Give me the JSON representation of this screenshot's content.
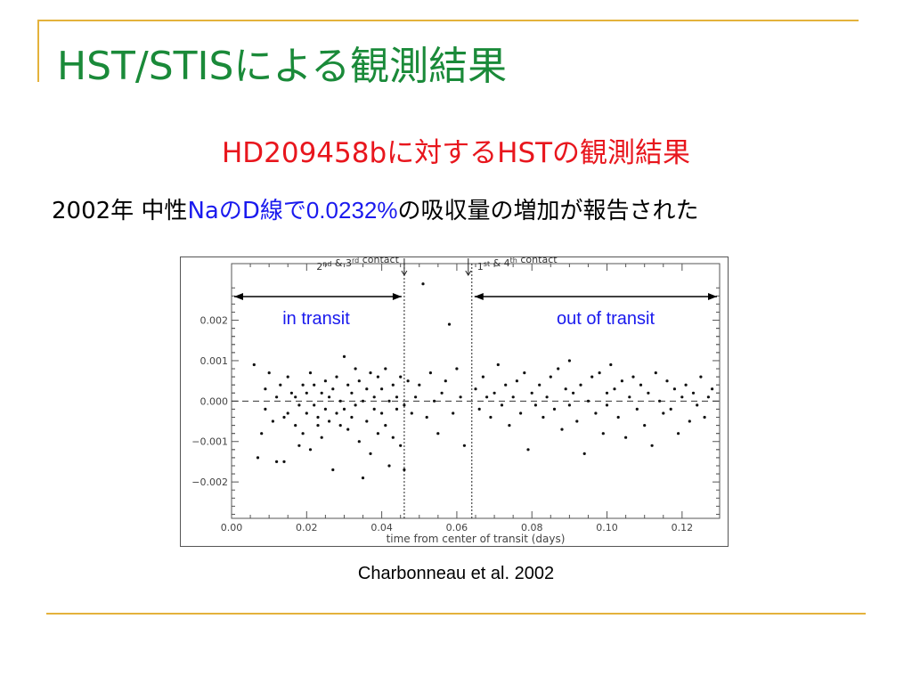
{
  "slide": {
    "title": "HST/STISによる観測結果",
    "subtitle": "HD209458bに対するHSTの観測結果",
    "desc_year": "2002年 中性",
    "desc_blue": "NaのD線で",
    "desc_value": "0.0232%",
    "desc_rest": "の吸収量の増加が報告された",
    "citation": "Charbonneau et al.  2002",
    "accent_color": "#e4b23c",
    "title_color": "#1a8a39",
    "subtitle_color": "#e8161d",
    "highlight_color": "#1a1aee"
  },
  "chart_data": {
    "type": "scatter",
    "title": "",
    "xlabel": "time from center of transit (days)",
    "ylabel": "",
    "xlim": [
      0.0,
      0.13
    ],
    "ylim": [
      -0.0029,
      0.0034
    ],
    "x_ticks": [
      "0.00",
      "0.02",
      "0.04",
      "0.06",
      "0.08",
      "0.10",
      "0.12"
    ],
    "y_ticks": [
      "0.002",
      "0.001",
      "0.000",
      "−0.001",
      "−0.002"
    ],
    "baseline_y": 0.0,
    "contact_lines": [
      {
        "x": 0.046,
        "label_main": "2",
        "label_sup": "nd",
        "label_mid": " & 3",
        "label_sup2": "rd",
        "label_end": " contact"
      },
      {
        "x": 0.064,
        "label_main": "1",
        "label_sup": "st",
        "label_mid": " & 4",
        "label_sup2": "th",
        "label_end": " contact"
      }
    ],
    "regions": [
      {
        "label": "in transit",
        "x_range": [
          0.0,
          0.046
        ],
        "y": 0.0025
      },
      {
        "label": "out of transit",
        "x_range": [
          0.064,
          0.13
        ],
        "y": 0.0025
      }
    ],
    "series": [
      {
        "values": [
          [
            0.006,
            0.0009
          ],
          [
            0.007,
            -0.0014
          ],
          [
            0.008,
            -0.0008
          ],
          [
            0.009,
            0.0003
          ],
          [
            0.009,
            -0.0002
          ],
          [
            0.01,
            0.0007
          ],
          [
            0.011,
            -0.0005
          ],
          [
            0.012,
            0.0001
          ],
          [
            0.012,
            -0.0015
          ],
          [
            0.013,
            0.0004
          ],
          [
            0.014,
            -0.0004
          ],
          [
            0.014,
            -0.0015
          ],
          [
            0.015,
            0.0006
          ],
          [
            0.015,
            -0.0003
          ],
          [
            0.016,
            0.0002
          ],
          [
            0.017,
            -0.0006
          ],
          [
            0.017,
            0.0001
          ],
          [
            0.018,
            -0.0001
          ],
          [
            0.018,
            -0.0011
          ],
          [
            0.019,
            0.0004
          ],
          [
            0.019,
            -0.0008
          ],
          [
            0.02,
            0.0002
          ],
          [
            0.02,
            -0.0003
          ],
          [
            0.021,
            0.0007
          ],
          [
            0.021,
            -0.0012
          ],
          [
            0.022,
            -0.0001
          ],
          [
            0.022,
            0.0004
          ],
          [
            0.023,
            -0.0004
          ],
          [
            0.023,
            -0.0006
          ],
          [
            0.024,
            0.0002
          ],
          [
            0.024,
            -0.0009
          ],
          [
            0.025,
            0.0005
          ],
          [
            0.025,
            -0.0002
          ],
          [
            0.026,
            -0.0005
          ],
          [
            0.026,
            0.0001
          ],
          [
            0.027,
            0.0003
          ],
          [
            0.027,
            -0.0017
          ],
          [
            0.028,
            -0.0003
          ],
          [
            0.028,
            0.0006
          ],
          [
            0.029,
            0.0
          ],
          [
            0.029,
            -0.0006
          ],
          [
            0.03,
            0.0011
          ],
          [
            0.03,
            -0.0002
          ],
          [
            0.031,
            0.0004
          ],
          [
            0.031,
            -0.0007
          ],
          [
            0.032,
            0.0002
          ],
          [
            0.032,
            -0.0004
          ],
          [
            0.033,
            0.0008
          ],
          [
            0.033,
            -0.0001
          ],
          [
            0.034,
            -0.001
          ],
          [
            0.034,
            0.0005
          ],
          [
            0.035,
            0.0
          ],
          [
            0.035,
            -0.0019
          ],
          [
            0.036,
            0.0003
          ],
          [
            0.036,
            -0.0005
          ],
          [
            0.037,
            0.0007
          ],
          [
            0.037,
            -0.0013
          ],
          [
            0.038,
            -0.0002
          ],
          [
            0.038,
            0.0001
          ],
          [
            0.039,
            0.0006
          ],
          [
            0.039,
            -0.0008
          ],
          [
            0.04,
            0.0003
          ],
          [
            0.04,
            -0.0003
          ],
          [
            0.041,
            0.0008
          ],
          [
            0.041,
            -0.0006
          ],
          [
            0.042,
            0.0
          ],
          [
            0.042,
            -0.0016
          ],
          [
            0.043,
            0.0004
          ],
          [
            0.043,
            -0.0009
          ],
          [
            0.044,
            0.0001
          ],
          [
            0.044,
            -0.0002
          ],
          [
            0.045,
            0.0006
          ],
          [
            0.045,
            -0.0011
          ],
          [
            0.046,
            -0.0001
          ],
          [
            0.046,
            -0.0017
          ],
          [
            0.047,
            0.0005
          ],
          [
            0.048,
            -0.0003
          ],
          [
            0.049,
            0.0001
          ],
          [
            0.05,
            0.0004
          ],
          [
            0.051,
            0.0029
          ],
          [
            0.052,
            -0.0004
          ],
          [
            0.053,
            0.0007
          ],
          [
            0.054,
            0.0
          ],
          [
            0.055,
            -0.0008
          ],
          [
            0.056,
            0.0002
          ],
          [
            0.057,
            0.0005
          ],
          [
            0.058,
            0.0019
          ],
          [
            0.059,
            -0.0003
          ],
          [
            0.06,
            0.0008
          ],
          [
            0.061,
            0.0001
          ],
          [
            0.062,
            -0.0011
          ],
          [
            0.065,
            0.0003
          ],
          [
            0.066,
            -0.0002
          ],
          [
            0.067,
            0.0006
          ],
          [
            0.068,
            0.0001
          ],
          [
            0.069,
            -0.0004
          ],
          [
            0.07,
            0.0002
          ],
          [
            0.071,
            0.0009
          ],
          [
            0.072,
            -0.0001
          ],
          [
            0.073,
            0.0004
          ],
          [
            0.074,
            -0.0006
          ],
          [
            0.075,
            0.0001
          ],
          [
            0.076,
            0.0005
          ],
          [
            0.077,
            -0.0003
          ],
          [
            0.078,
            0.0007
          ],
          [
            0.079,
            -0.0012
          ],
          [
            0.08,
            0.0002
          ],
          [
            0.081,
            -0.0001
          ],
          [
            0.082,
            0.0004
          ],
          [
            0.083,
            -0.0004
          ],
          [
            0.084,
            0.0001
          ],
          [
            0.085,
            0.0006
          ],
          [
            0.086,
            -0.0002
          ],
          [
            0.087,
            0.0008
          ],
          [
            0.088,
            -0.0007
          ],
          [
            0.089,
            0.0003
          ],
          [
            0.09,
            -0.0001
          ],
          [
            0.09,
            0.001
          ],
          [
            0.091,
            0.0002
          ],
          [
            0.092,
            -0.0005
          ],
          [
            0.093,
            0.0004
          ],
          [
            0.094,
            -0.0013
          ],
          [
            0.095,
            0.0
          ],
          [
            0.096,
            0.0006
          ],
          [
            0.097,
            -0.0003
          ],
          [
            0.098,
            0.0007
          ],
          [
            0.099,
            -0.0008
          ],
          [
            0.1,
            0.0002
          ],
          [
            0.1,
            -0.0001
          ],
          [
            0.101,
            0.0009
          ],
          [
            0.102,
            0.0003
          ],
          [
            0.103,
            -0.0004
          ],
          [
            0.104,
            0.0005
          ],
          [
            0.105,
            -0.0009
          ],
          [
            0.106,
            0.0001
          ],
          [
            0.107,
            0.0006
          ],
          [
            0.108,
            -0.0002
          ],
          [
            0.109,
            0.0004
          ],
          [
            0.11,
            -0.0006
          ],
          [
            0.111,
            0.0002
          ],
          [
            0.112,
            -0.0011
          ],
          [
            0.113,
            0.0007
          ],
          [
            0.114,
            0.0
          ],
          [
            0.115,
            -0.0003
          ],
          [
            0.116,
            0.0005
          ],
          [
            0.117,
            -0.0002
          ],
          [
            0.118,
            0.0003
          ],
          [
            0.119,
            -0.0008
          ],
          [
            0.12,
            0.0001
          ],
          [
            0.121,
            0.0004
          ],
          [
            0.122,
            -0.0005
          ],
          [
            0.123,
            0.0002
          ],
          [
            0.124,
            -0.0001
          ],
          [
            0.125,
            0.0006
          ],
          [
            0.126,
            -0.0004
          ],
          [
            0.127,
            0.0001
          ],
          [
            0.128,
            0.0003
          ]
        ]
      }
    ],
    "grid": false
  }
}
